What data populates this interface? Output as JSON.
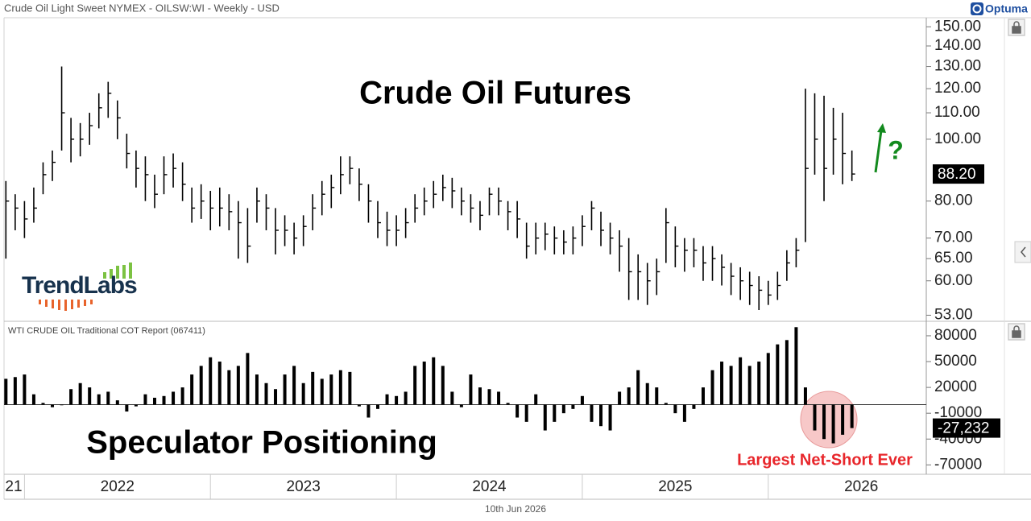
{
  "brand": "Optuma",
  "logo": "TrendLabs",
  "date": "10th Jun 2026",
  "chart_data": [
    {
      "type": "ohlc",
      "title": "Crude Oil Light Sweet NYMEX - OILSW:WI - Weekly - USD",
      "annotations": [
        "Crude Oil Futures",
        "?"
      ],
      "color": "#000000",
      "log_scale": true,
      "x": [
        2021.9,
        2021.95,
        2022,
        2022.05,
        2022.1,
        2022.15,
        2022.2,
        2022.25,
        2022.3,
        2022.35,
        2022.4,
        2022.45,
        2022.5,
        2022.55,
        2022.6,
        2022.65,
        2022.7,
        2022.75,
        2022.8,
        2022.85,
        2022.9,
        2022.95,
        2023,
        2023.05,
        2023.1,
        2023.15,
        2023.2,
        2023.25,
        2023.3,
        2023.35,
        2023.4,
        2023.45,
        2023.5,
        2023.55,
        2023.6,
        2023.65,
        2023.7,
        2023.75,
        2023.8,
        2023.85,
        2023.9,
        2023.95,
        2024,
        2024.05,
        2024.1,
        2024.15,
        2024.2,
        2024.25,
        2024.3,
        2024.35,
        2024.4,
        2024.45,
        2024.5,
        2024.55,
        2024.6,
        2024.65,
        2024.7,
        2024.75,
        2024.8,
        2024.85,
        2024.9,
        2024.95,
        2025,
        2025.05,
        2025.1,
        2025.15,
        2025.2,
        2025.25,
        2025.3,
        2025.35,
        2025.4,
        2025.45,
        2025.5,
        2025.55,
        2025.6,
        2025.65,
        2025.7,
        2025.75,
        2025.8,
        2025.85,
        2025.9,
        2025.95,
        2026,
        2026.05,
        2026.1,
        2026.15,
        2026.2,
        2026.25,
        2026.3,
        2026.35,
        2026.4,
        2026.45
      ],
      "high": [
        86,
        82,
        80,
        84,
        92,
        96,
        130,
        108,
        106,
        110,
        118,
        123,
        115,
        102,
        96,
        94,
        88,
        94,
        95,
        92,
        84,
        85,
        83,
        84,
        82,
        80,
        78,
        84,
        82,
        78,
        76,
        74,
        76,
        82,
        86,
        88,
        94,
        94,
        90,
        85,
        80,
        77,
        76,
        78,
        82,
        84,
        86,
        88,
        87,
        84,
        82,
        80,
        84,
        84,
        80,
        80,
        74,
        74,
        74,
        73,
        72,
        73,
        76,
        80,
        77,
        74,
        72,
        70,
        66,
        64,
        65,
        78,
        73,
        70,
        70,
        68,
        68,
        66,
        64,
        63,
        62,
        61,
        60,
        62,
        67,
        70,
        120,
        118,
        117,
        112,
        110,
        96
      ],
      "low": [
        65,
        72,
        70,
        74,
        82,
        86,
        96,
        92,
        94,
        98,
        104,
        108,
        100,
        90,
        84,
        80,
        78,
        82,
        84,
        80,
        74,
        75,
        72,
        73,
        72,
        65,
        64,
        74,
        72,
        66,
        68,
        66,
        68,
        72,
        76,
        78,
        82,
        85,
        80,
        74,
        70,
        68,
        68,
        70,
        74,
        76,
        78,
        80,
        78,
        76,
        74,
        72,
        76,
        76,
        72,
        70,
        65,
        66,
        67,
        66,
        66,
        66,
        68,
        72,
        68,
        66,
        62,
        56,
        56,
        55,
        57,
        64,
        63,
        62,
        63,
        60,
        60,
        59,
        57,
        56,
        55,
        54,
        55,
        56,
        60,
        63,
        69,
        88,
        80,
        88,
        85,
        86
      ],
      "close": [
        80,
        78,
        75,
        78,
        88,
        92,
        110,
        100,
        100,
        105,
        112,
        118,
        108,
        95,
        90,
        88,
        82,
        88,
        90,
        85,
        78,
        80,
        78,
        78,
        77,
        74,
        68,
        80,
        78,
        72,
        72,
        70,
        73,
        78,
        82,
        84,
        88,
        90,
        85,
        80,
        74,
        72,
        72,
        74,
        78,
        80,
        82,
        84,
        83,
        80,
        78,
        76,
        82,
        80,
        77,
        75,
        68,
        70,
        71,
        70,
        69,
        70,
        73,
        78,
        72,
        70,
        68,
        62,
        62,
        60,
        62,
        74,
        68,
        67,
        67,
        64,
        65,
        63,
        61,
        60,
        59,
        58,
        57,
        59,
        64,
        67,
        90,
        100,
        90,
        100,
        95,
        88.2
      ],
      "last_label": "88.20",
      "xlim": [
        2021.89,
        2026.85
      ],
      "ylim": [
        52,
        155
      ],
      "yticks": [
        {
          "value": 53,
          "label": "53.00"
        },
        {
          "value": 60,
          "label": "60.00"
        },
        {
          "value": 65,
          "label": "65.00"
        },
        {
          "value": 70,
          "label": "70.00"
        },
        {
          "value": 80,
          "label": "80.00"
        },
        {
          "value": 100,
          "label": "100.00"
        },
        {
          "value": 110,
          "label": "110.00"
        },
        {
          "value": 120,
          "label": "120.00"
        },
        {
          "value": 130,
          "label": "130.00"
        },
        {
          "value": 140,
          "label": "140.00"
        },
        {
          "value": 150,
          "label": "150.00"
        }
      ]
    },
    {
      "type": "bar",
      "title": "WTI CRUDE OIL Traditional COT Report (067411)",
      "annotations": [
        "Speculator Positioning",
        "Largest Net-Short Ever"
      ],
      "color": "#000000",
      "highlight_color": "#e8262b",
      "x": [
        2021.9,
        2021.95,
        2022,
        2022.05,
        2022.1,
        2022.15,
        2022.2,
        2022.25,
        2022.3,
        2022.35,
        2022.4,
        2022.45,
        2022.5,
        2022.55,
        2022.6,
        2022.65,
        2022.7,
        2022.75,
        2022.8,
        2022.85,
        2022.9,
        2022.95,
        2023,
        2023.05,
        2023.1,
        2023.15,
        2023.2,
        2023.25,
        2023.3,
        2023.35,
        2023.4,
        2023.45,
        2023.5,
        2023.55,
        2023.6,
        2023.65,
        2023.7,
        2023.75,
        2023.8,
        2023.85,
        2023.9,
        2023.95,
        2024,
        2024.05,
        2024.1,
        2024.15,
        2024.2,
        2024.25,
        2024.3,
        2024.35,
        2024.4,
        2024.45,
        2024.5,
        2024.55,
        2024.6,
        2024.65,
        2024.7,
        2024.75,
        2024.8,
        2024.85,
        2024.9,
        2024.95,
        2025,
        2025.05,
        2025.1,
        2025.15,
        2025.2,
        2025.25,
        2025.3,
        2025.35,
        2025.4,
        2025.45,
        2025.5,
        2025.55,
        2025.6,
        2025.65,
        2025.7,
        2025.75,
        2025.8,
        2025.85,
        2025.9,
        2025.95,
        2026,
        2026.05,
        2026.1,
        2026.15,
        2026.2,
        2026.25,
        2026.3,
        2026.35,
        2026.4,
        2026.45
      ],
      "values": [
        30000,
        32000,
        35000,
        12000,
        2000,
        -3000,
        0,
        18000,
        25000,
        20000,
        12000,
        15000,
        5000,
        -8000,
        -2000,
        12000,
        8000,
        10000,
        15000,
        20000,
        35000,
        45000,
        55000,
        50000,
        40000,
        45000,
        60000,
        35000,
        25000,
        18000,
        35000,
        45000,
        25000,
        38000,
        30000,
        35000,
        40000,
        38000,
        -2000,
        -15000,
        -5000,
        12000,
        10000,
        15000,
        45000,
        50000,
        55000,
        45000,
        15000,
        -3000,
        35000,
        20000,
        18000,
        15000,
        2000,
        -15000,
        -20000,
        12000,
        -30000,
        -20000,
        -10000,
        -5000,
        10000,
        -20000,
        -25000,
        -30000,
        15000,
        20000,
        40000,
        25000,
        20000,
        2000,
        -10000,
        -20000,
        -5000,
        20000,
        40000,
        50000,
        45000,
        55000,
        45000,
        50000,
        60000,
        70000,
        75000,
        90000,
        20000,
        -30000,
        -40000,
        -45000,
        -35000,
        -27232
      ],
      "last_label": "-27,232",
      "xlim": [
        2021.89,
        2026.85
      ],
      "xticks": [
        {
          "value": 2021,
          "label": "21"
        },
        2022,
        2023,
        2024,
        2025,
        2026
      ],
      "ylim": [
        -80000,
        94000
      ],
      "yticks": [
        80000,
        50000,
        20000,
        -10000,
        -40000,
        -70000
      ]
    }
  ]
}
